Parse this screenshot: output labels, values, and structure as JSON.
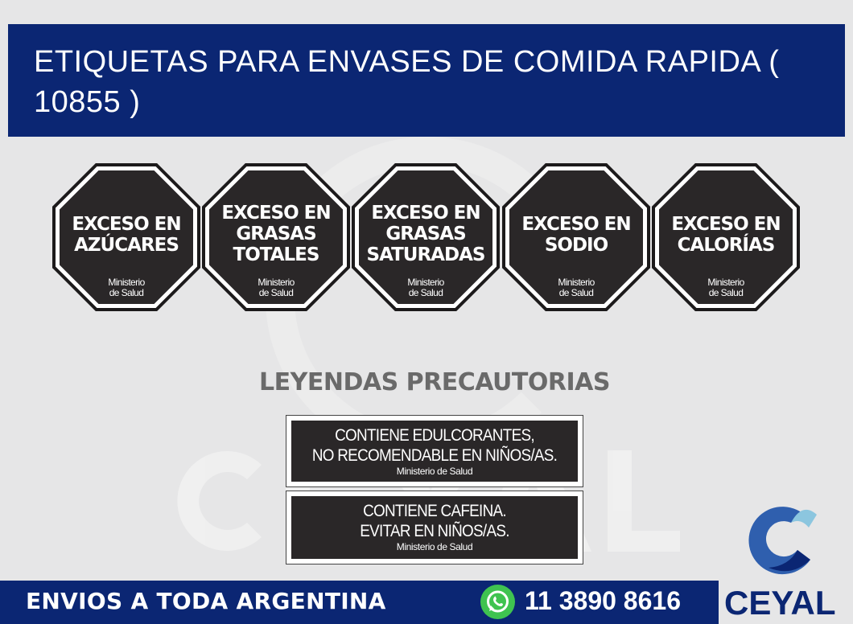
{
  "header": {
    "title": " ETIQUETAS PARA ENVASES DE COMIDA RAPIDA  ( 10855 )"
  },
  "octagons": [
    {
      "lines": [
        "EXCESO EN",
        "AZÚCARES"
      ],
      "authority": [
        "Ministerio",
        "de Salud"
      ]
    },
    {
      "lines": [
        "EXCESO EN",
        "GRASAS",
        "TOTALES"
      ],
      "authority": [
        "Ministerio",
        "de Salud"
      ]
    },
    {
      "lines": [
        "EXCESO EN",
        "GRASAS",
        "SATURADAS"
      ],
      "authority": [
        "Ministerio",
        "de Salud"
      ]
    },
    {
      "lines": [
        "EXCESO EN",
        "SODIO"
      ],
      "authority": [
        "Ministerio",
        "de Salud"
      ]
    },
    {
      "lines": [
        "EXCESO EN",
        "CALORÍAS"
      ],
      "authority": [
        "Ministerio",
        "de Salud"
      ]
    }
  ],
  "subtitle": "LEYENDAS PRECAUTORIAS",
  "legends": [
    {
      "lines": [
        "CONTIENE EDULCORANTES,",
        "NO RECOMENDABLE EN NIÑOS/AS."
      ],
      "authority": "Ministerio de Salud"
    },
    {
      "lines": [
        "CONTIENE CAFEINA.",
        "EVITAR EN NIÑOS/AS."
      ],
      "authority": "Ministerio de Salud"
    }
  ],
  "watermark": "CEYAL",
  "footer": {
    "shipping": "ENVIOS A TODA ARGENTINA",
    "phone": "11 3890 8616",
    "phone_icon": "whatsapp-icon"
  },
  "brand": {
    "name": "CEYAL",
    "colors": {
      "primary": "#0b2673",
      "secondary": "#2f5fae",
      "light": "#8cc6df"
    }
  }
}
